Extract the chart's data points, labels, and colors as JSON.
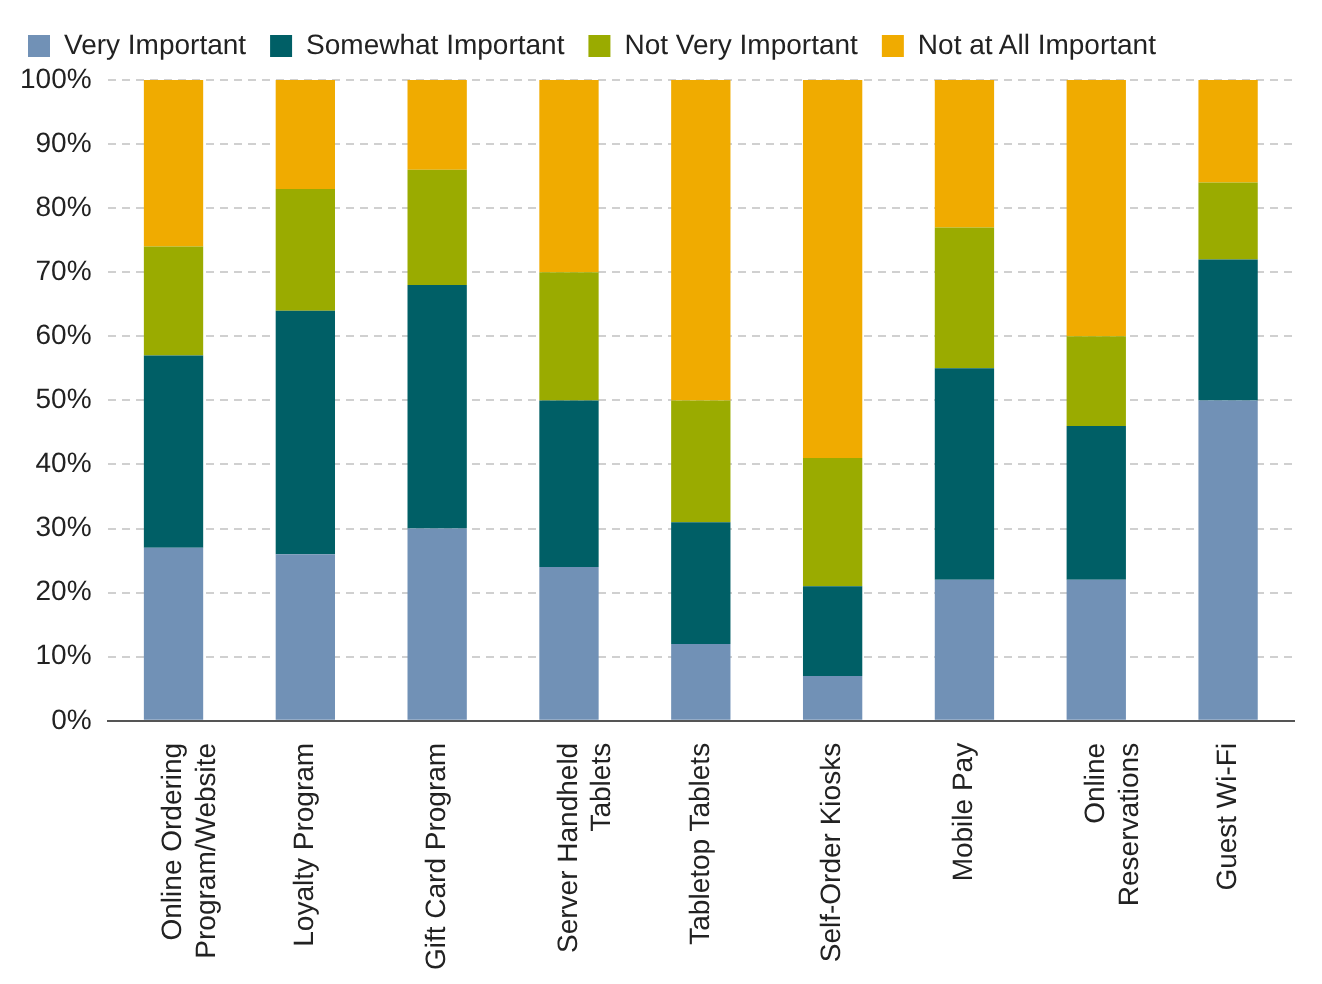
{
  "chart_data": {
    "type": "bar",
    "stacked": true,
    "categories": [
      "Online Ordering\nProgram/Website",
      "Loyalty Program",
      "Gift Card Program",
      "Server Handheld\nTablets",
      "Tabletop Tablets",
      "Self-Order Kiosks",
      "Mobile Pay",
      "Online\nReservations",
      "Guest Wi-Fi"
    ],
    "series": [
      {
        "name": "Very Important",
        "color": "#7191b6",
        "values": [
          27,
          26,
          30,
          24,
          12,
          7,
          22,
          22,
          50
        ]
      },
      {
        "name": "Somewhat Important",
        "color": "#005f66",
        "values": [
          30,
          38,
          38,
          26,
          19,
          14,
          33,
          24,
          22
        ]
      },
      {
        "name": "Not Very Important",
        "color": "#9aab00",
        "values": [
          17,
          19,
          18,
          20,
          19,
          20,
          22,
          14,
          12
        ]
      },
      {
        "name": "Not at All Important",
        "color": "#f0ab00",
        "values": [
          26,
          17,
          14,
          30,
          50,
          59,
          23,
          40,
          16
        ]
      }
    ],
    "ylim": [
      0,
      100
    ],
    "yticks": [
      {
        "value": 0,
        "label": "0%"
      },
      {
        "value": 10,
        "label": "10%"
      },
      {
        "value": 20,
        "label": "20%"
      },
      {
        "value": 30,
        "label": "30%"
      },
      {
        "value": 40,
        "label": "40%"
      },
      {
        "value": 50,
        "label": "50%"
      },
      {
        "value": 60,
        "label": "60%"
      },
      {
        "value": 70,
        "label": "70%"
      },
      {
        "value": 80,
        "label": "80%"
      },
      {
        "value": 90,
        "label": "90%"
      },
      {
        "value": 100,
        "label": "100%"
      }
    ],
    "grid": "y",
    "legend": "top left"
  }
}
